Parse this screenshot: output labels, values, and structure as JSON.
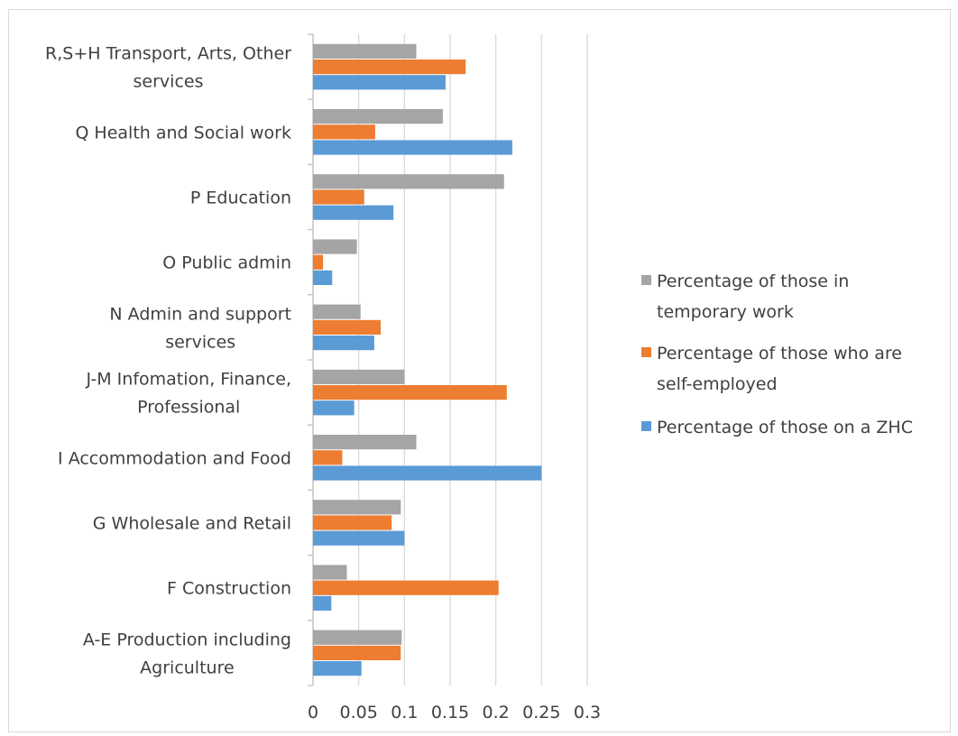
{
  "chart_data": {
    "type": "bar",
    "orientation": "horizontal",
    "title": "",
    "xlabel": "",
    "ylabel": "",
    "xlim": [
      0,
      0.3
    ],
    "xticks": [
      "0",
      "0.05",
      "0.1",
      "0.15",
      "0.2",
      "0.25",
      "0.3"
    ],
    "grid": true,
    "legend_position": "right",
    "categories": [
      "R,S+H Transport, Arts, Other services",
      "Q Health and Social work",
      "P Education",
      "O Public admin",
      "N Admin and support services",
      "J-M Infomation, Finance, Professional",
      "I Accommodation and Food",
      "G Wholesale and Retail",
      "F Construction",
      "A-E Production including Agriculture"
    ],
    "category_lines": [
      [
        "R,S+H Transport, Arts, Other",
        "services"
      ],
      [
        "Q Health and Social work"
      ],
      [
        "P Education"
      ],
      [
        "O Public admin"
      ],
      [
        "N Admin and support",
        "services"
      ],
      [
        "J-M Infomation, Finance,",
        "Professional"
      ],
      [
        "I Accommodation and Food"
      ],
      [
        "G Wholesale and Retail"
      ],
      [
        "F Construction"
      ],
      [
        "A-E Production including",
        "Agriculture"
      ]
    ],
    "series": [
      {
        "name": "Percentage of those in temporary work",
        "legend_lines": [
          "Percentage of those in",
          "temporary work"
        ],
        "color": "#a5a5a5",
        "values": [
          0.113,
          0.142,
          0.209,
          0.048,
          0.052,
          0.1,
          0.113,
          0.096,
          0.037,
          0.097
        ]
      },
      {
        "name": "Percentage of those who are self-employed",
        "legend_lines": [
          "Percentage of those who are",
          "self-employed"
        ],
        "color": "#ed7d31",
        "values": [
          0.167,
          0.068,
          0.056,
          0.011,
          0.074,
          0.212,
          0.032,
          0.086,
          0.203,
          0.096
        ]
      },
      {
        "name": "Percentage of those on a ZHC",
        "legend_lines": [
          "Percentage of those on a ZHC"
        ],
        "color": "#5b9bd5",
        "values": [
          0.145,
          0.218,
          0.088,
          0.021,
          0.067,
          0.045,
          0.25,
          0.1,
          0.02,
          0.053
        ]
      }
    ]
  }
}
